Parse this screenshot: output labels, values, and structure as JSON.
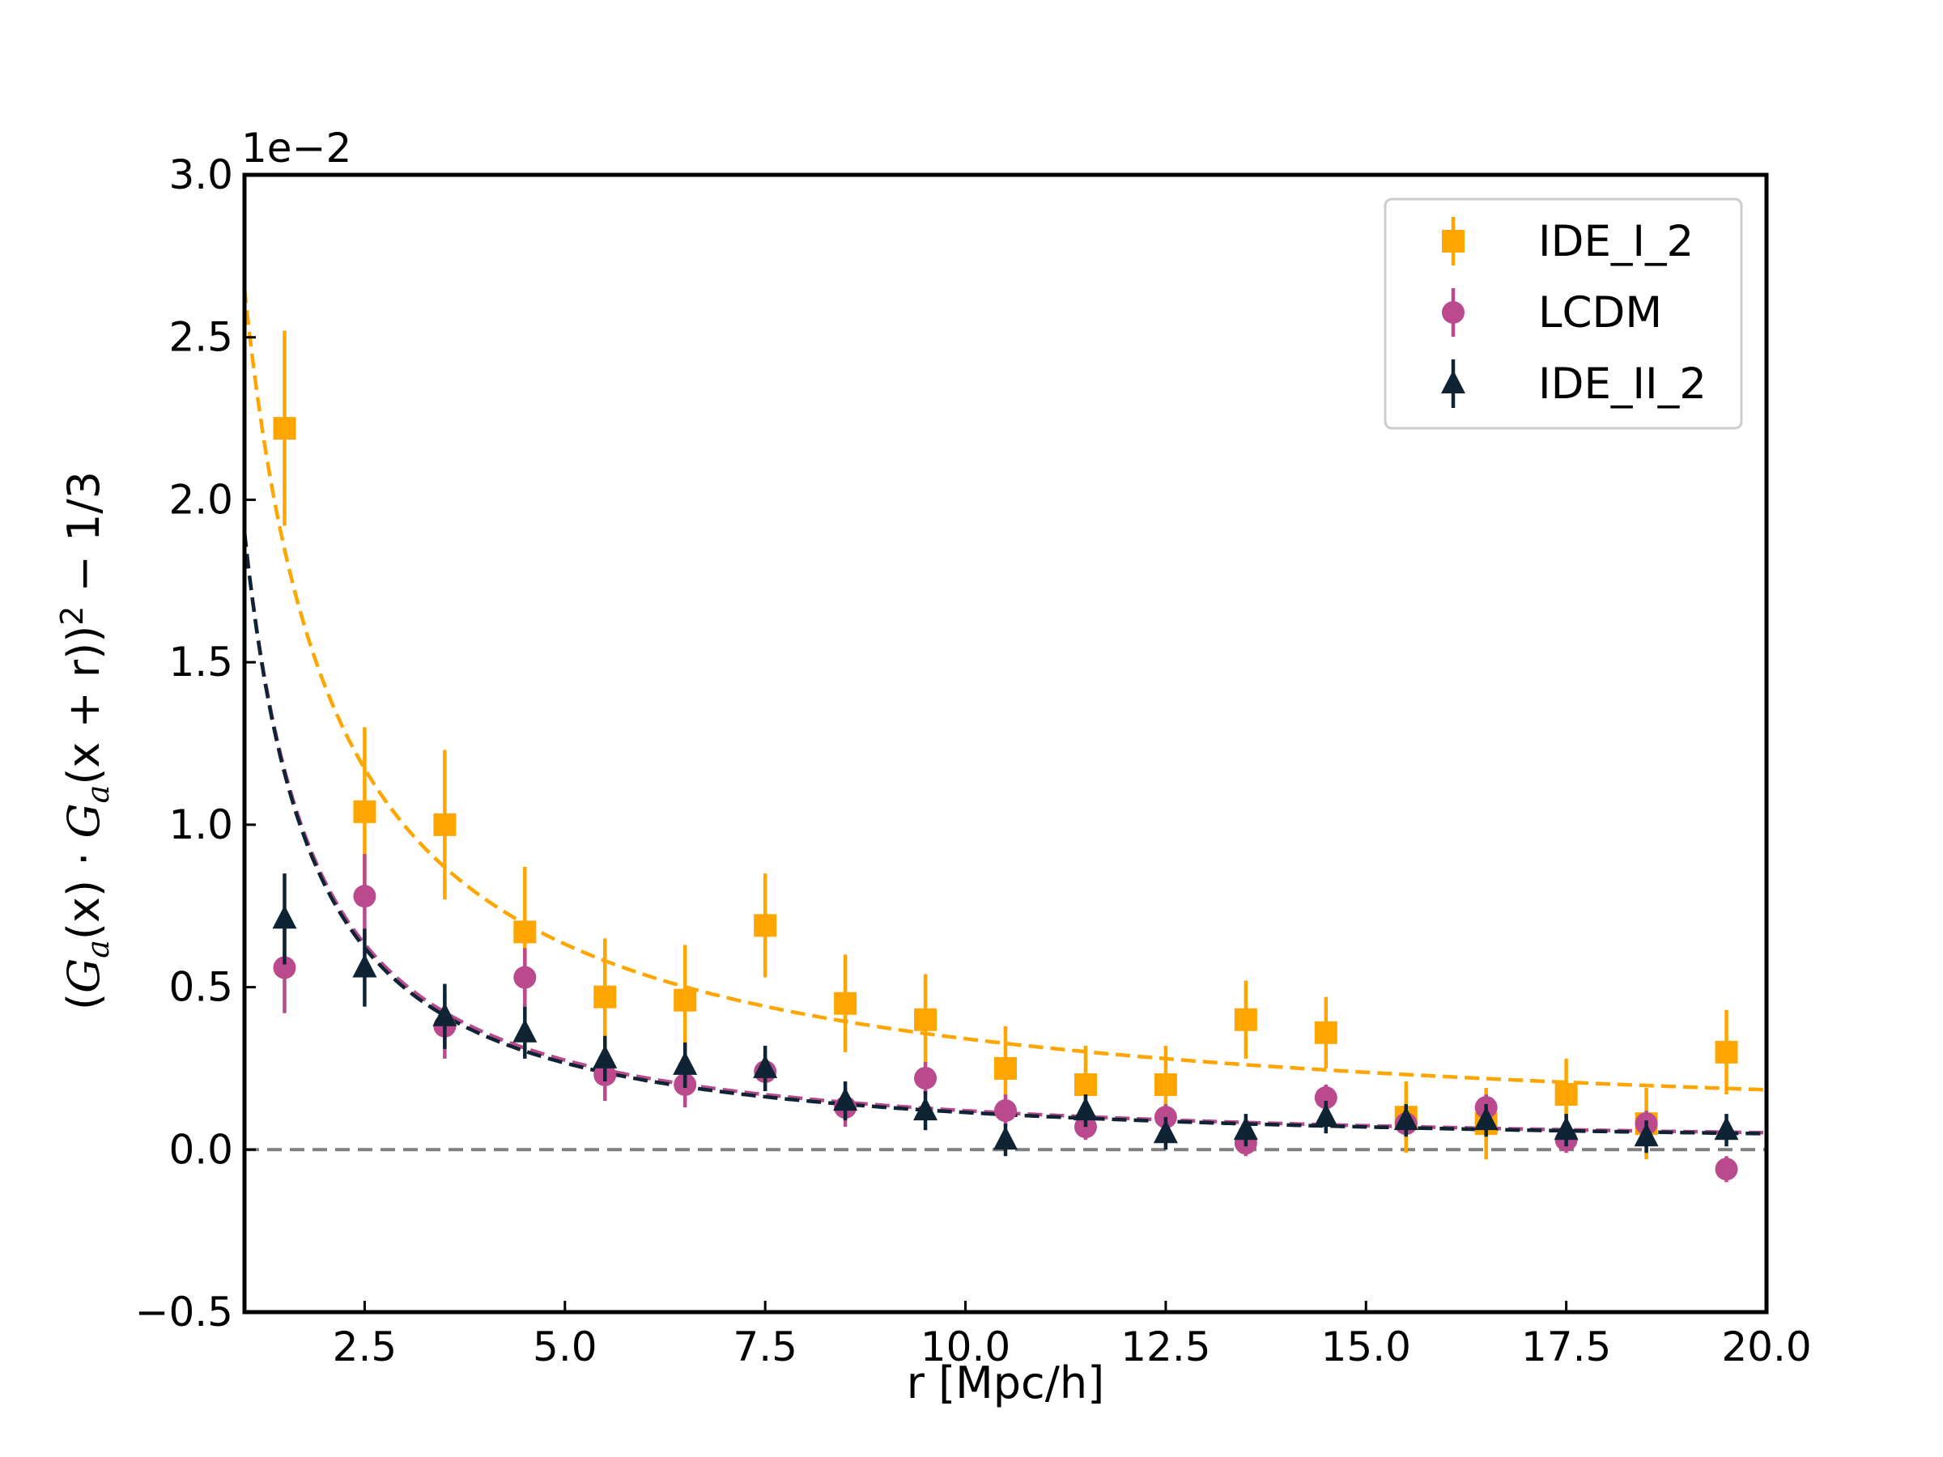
{
  "chart_data": {
    "type": "scatter",
    "title": "",
    "xlabel": "r [Mpc/h]",
    "ylabel": "(G⃗a(x⃗) · G⃗a(x⃗ + r⃗))² − 1/3",
    "ylabel_parts": {
      "open": "(",
      "g1": "G",
      "sub1": "a",
      "arg1": "(x)",
      "dot": " · ",
      "g2": "G",
      "sub2": "a",
      "arg2": "(x + r))",
      "power": "2",
      "tail": " − 1/3"
    },
    "y_offset_label": "1e−2",
    "xlim": [
      1.0,
      20.0
    ],
    "ylim": [
      -0.5,
      3.0
    ],
    "x_ticks": [
      2.5,
      5.0,
      7.5,
      10.0,
      12.5,
      15.0,
      17.5,
      20.0
    ],
    "x_tick_labels": [
      "2.5",
      "5.0",
      "7.5",
      "10.0",
      "12.5",
      "15.0",
      "17.5",
      "20.0"
    ],
    "y_ticks": [
      -0.5,
      0.0,
      0.5,
      1.0,
      1.5,
      2.0,
      2.5,
      3.0
    ],
    "y_tick_labels": [
      "−0.5",
      "0.0",
      "0.5",
      "1.0",
      "1.5",
      "2.0",
      "2.5",
      "3.0"
    ],
    "legend_position": "top-right",
    "x": [
      1.5,
      2.5,
      3.5,
      4.5,
      5.5,
      6.5,
      7.5,
      8.5,
      9.5,
      10.5,
      11.5,
      12.5,
      13.5,
      14.5,
      15.5,
      16.5,
      17.5,
      18.5,
      19.5
    ],
    "series": [
      {
        "name": "IDE_I_2",
        "marker": "square",
        "color": "#FFA500",
        "values": [
          2.22,
          1.04,
          1.0,
          0.67,
          0.47,
          0.46,
          0.69,
          0.45,
          0.4,
          0.25,
          0.2,
          0.2,
          0.4,
          0.36,
          0.1,
          0.08,
          0.17,
          0.08,
          0.3
        ],
        "errors": [
          0.3,
          0.26,
          0.23,
          0.2,
          0.18,
          0.17,
          0.16,
          0.15,
          0.14,
          0.13,
          0.12,
          0.12,
          0.12,
          0.11,
          0.11,
          0.11,
          0.11,
          0.11,
          0.13
        ],
        "fit": {
          "style": "dashed",
          "A": 2.65,
          "alpha": 0.89
        }
      },
      {
        "name": "LCDM",
        "marker": "circle",
        "color": "#BA4A8D",
        "values": [
          0.56,
          0.78,
          0.38,
          0.53,
          0.23,
          0.2,
          0.24,
          0.13,
          0.22,
          0.12,
          0.07,
          0.1,
          0.02,
          0.16,
          0.08,
          0.13,
          0.03,
          0.08,
          -0.06
        ],
        "errors": [
          0.14,
          0.13,
          0.1,
          0.09,
          0.08,
          0.07,
          0.06,
          0.06,
          0.05,
          0.05,
          0.04,
          0.04,
          0.04,
          0.04,
          0.04,
          0.04,
          0.04,
          0.04,
          0.04
        ],
        "fit": {
          "style": "dashed",
          "A": 1.9,
          "alpha": 1.2
        }
      },
      {
        "name": "IDE_II_2",
        "marker": "triangle",
        "color": "#0E2435",
        "values": [
          0.71,
          0.56,
          0.41,
          0.36,
          0.28,
          0.26,
          0.25,
          0.15,
          0.12,
          0.03,
          0.12,
          0.05,
          0.06,
          0.1,
          0.09,
          0.09,
          0.06,
          0.04,
          0.06
        ],
        "errors": [
          0.14,
          0.12,
          0.1,
          0.08,
          0.07,
          0.07,
          0.07,
          0.06,
          0.06,
          0.05,
          0.05,
          0.05,
          0.05,
          0.05,
          0.05,
          0.05,
          0.05,
          0.05,
          0.05
        ],
        "fit": {
          "style": "dashed",
          "A": 1.9,
          "alpha": 1.22
        }
      }
    ],
    "reference_line": {
      "y": 0.0,
      "style": "dashed",
      "color": "#808080"
    }
  }
}
